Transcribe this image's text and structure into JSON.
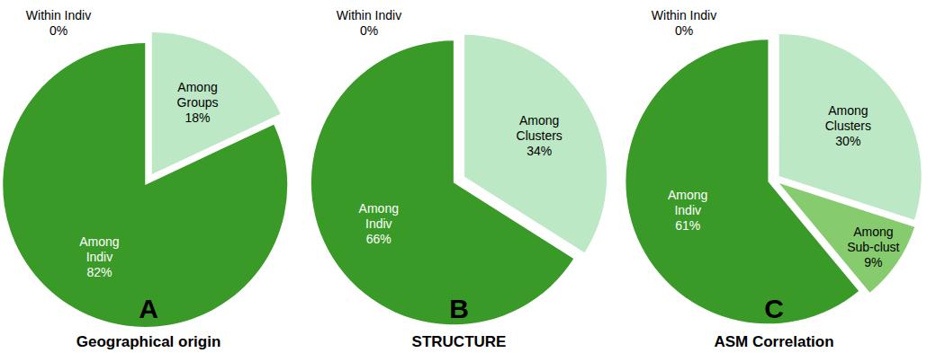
{
  "chart_data": [
    {
      "type": "pie",
      "title": "Geographical origin",
      "annotations": [
        "A"
      ],
      "categories": [
        "Within Indiv",
        "Among Groups",
        "Among Indiv"
      ],
      "values": [
        0,
        18,
        82
      ],
      "value_labels": [
        "0%",
        "18%",
        "82%"
      ],
      "colors": [
        "#3a9a28",
        "#bde8c5",
        "#3a9a28"
      ],
      "data_labels": true
    },
    {
      "type": "pie",
      "title": "STRUCTURE",
      "annotations": [
        "B"
      ],
      "categories": [
        "Within Indiv",
        "Among Clusters",
        "Among Indiv"
      ],
      "values": [
        0,
        34,
        66
      ],
      "value_labels": [
        "0%",
        "34%",
        "66%"
      ],
      "colors": [
        "#3a9a28",
        "#bde8c5",
        "#3a9a28"
      ],
      "data_labels": true
    },
    {
      "type": "pie",
      "title": "ASM Correlation",
      "annotations": [
        "C"
      ],
      "categories": [
        "Within Indiv",
        "Among Clusters",
        "Among Sub-clust",
        "Among Indiv"
      ],
      "values": [
        0,
        30,
        9,
        61
      ],
      "value_labels": [
        "0%",
        "30%",
        "9%",
        "61%"
      ],
      "colors": [
        "#3a9a28",
        "#bde8c5",
        "#86cc6e",
        "#3a9a28"
      ],
      "data_labels": true
    }
  ]
}
